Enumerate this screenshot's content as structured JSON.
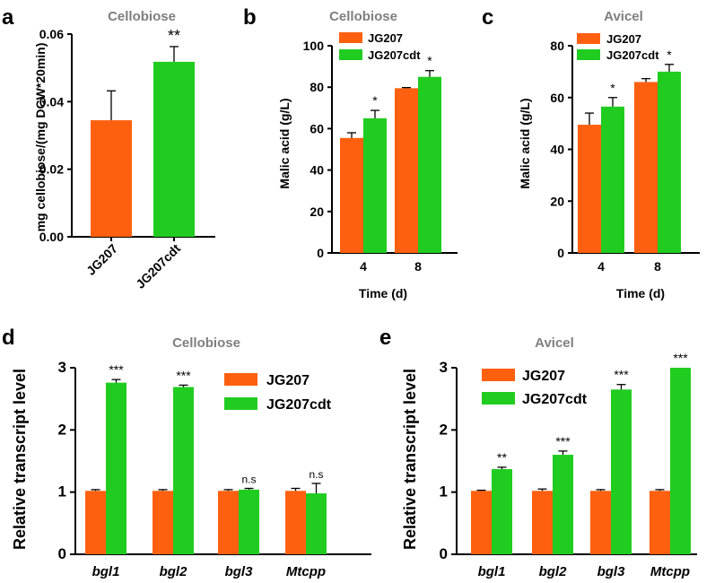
{
  "colors": {
    "JG207": "#ff6010",
    "JG207cdt": "#21cc21",
    "title": "#7f7f7f",
    "axis": "#000000"
  },
  "chart_data": [
    {
      "panel": "a",
      "type": "bar",
      "title": "Cellobiose",
      "ylabel": "mg cellobiose/(mg DCW*20min)",
      "xlabel": "",
      "ylim": [
        0,
        0.06
      ],
      "yticks": [
        "0.00",
        "0.02",
        "0.04",
        "0.06"
      ],
      "categories": [
        "JG207",
        "JG207cdt"
      ],
      "values": [
        0.0345,
        0.0518
      ],
      "errors": [
        0.0087,
        0.0045
      ],
      "colors": [
        "#ff6010",
        "#21cc21"
      ],
      "significance": [
        "",
        "**"
      ]
    },
    {
      "panel": "b",
      "type": "bar",
      "title": "Cellobiose",
      "ylabel": "Malic acid (g/L)",
      "xlabel": "Time (d)",
      "ylim": [
        0,
        100
      ],
      "yticks": [
        "0",
        "20",
        "40",
        "60",
        "80",
        "100"
      ],
      "categories": [
        "4",
        "8"
      ],
      "series": [
        {
          "name": "JG207",
          "values": [
            55.5,
            79.5
          ],
          "errors": [
            2.5,
            0.3
          ]
        },
        {
          "name": "JG207cdt",
          "values": [
            65.0,
            85.0
          ],
          "errors": [
            3.8,
            3.0
          ]
        }
      ],
      "significance": [
        "*",
        "*"
      ],
      "legend": "top-left"
    },
    {
      "panel": "c",
      "type": "bar",
      "title": "Avicel",
      "ylabel": "Malic acid (g/L)",
      "xlabel": "Time (d)",
      "ylim": [
        0,
        80
      ],
      "yticks": [
        "0",
        "20",
        "40",
        "60",
        "80"
      ],
      "categories": [
        "4",
        "8"
      ],
      "series": [
        {
          "name": "JG207",
          "values": [
            49.5,
            66.0
          ],
          "errors": [
            4.5,
            1.3
          ]
        },
        {
          "name": "JG207cdt",
          "values": [
            56.5,
            70.0
          ],
          "errors": [
            3.5,
            2.8
          ]
        }
      ],
      "significance": [
        "*",
        "*"
      ],
      "legend": "top-left"
    },
    {
      "panel": "d",
      "type": "bar",
      "title": "Cellobiose",
      "ylabel": "Relative transcript level",
      "xlabel": "",
      "ylim": [
        0,
        3
      ],
      "yticks": [
        "0",
        "1",
        "2",
        "3"
      ],
      "categories": [
        "bgl1",
        "bgl2",
        "bgl3",
        "Mtcpp"
      ],
      "series": [
        {
          "name": "JG207",
          "values": [
            1.02,
            1.02,
            1.02,
            1.02
          ],
          "errors": [
            0.02,
            0.02,
            0.02,
            0.04
          ]
        },
        {
          "name": "JG207cdt",
          "values": [
            2.76,
            2.69,
            1.04,
            0.98
          ],
          "errors": [
            0.05,
            0.03,
            0.02,
            0.16
          ]
        }
      ],
      "significance": [
        "***",
        "***",
        "n.s",
        "n.s"
      ],
      "legend": "top-right"
    },
    {
      "panel": "e",
      "type": "bar",
      "title": "Avicel",
      "ylabel": "Relative transcript level",
      "xlabel": "",
      "ylim": [
        0,
        3
      ],
      "yticks": [
        "0",
        "1",
        "2",
        "3"
      ],
      "categories": [
        "bgl1",
        "bgl2",
        "bgl3",
        "Mtcpp"
      ],
      "series": [
        {
          "name": "JG207",
          "values": [
            1.02,
            1.02,
            1.02,
            1.02
          ],
          "errors": [
            0.01,
            0.03,
            0.02,
            0.02
          ]
        },
        {
          "name": "JG207cdt",
          "values": [
            1.37,
            1.6,
            2.65,
            3.0
          ],
          "errors": [
            0.03,
            0.06,
            0.08,
            0.0
          ]
        }
      ],
      "significance": [
        "**",
        "***",
        "***",
        "***"
      ],
      "legend": "top-left"
    }
  ]
}
